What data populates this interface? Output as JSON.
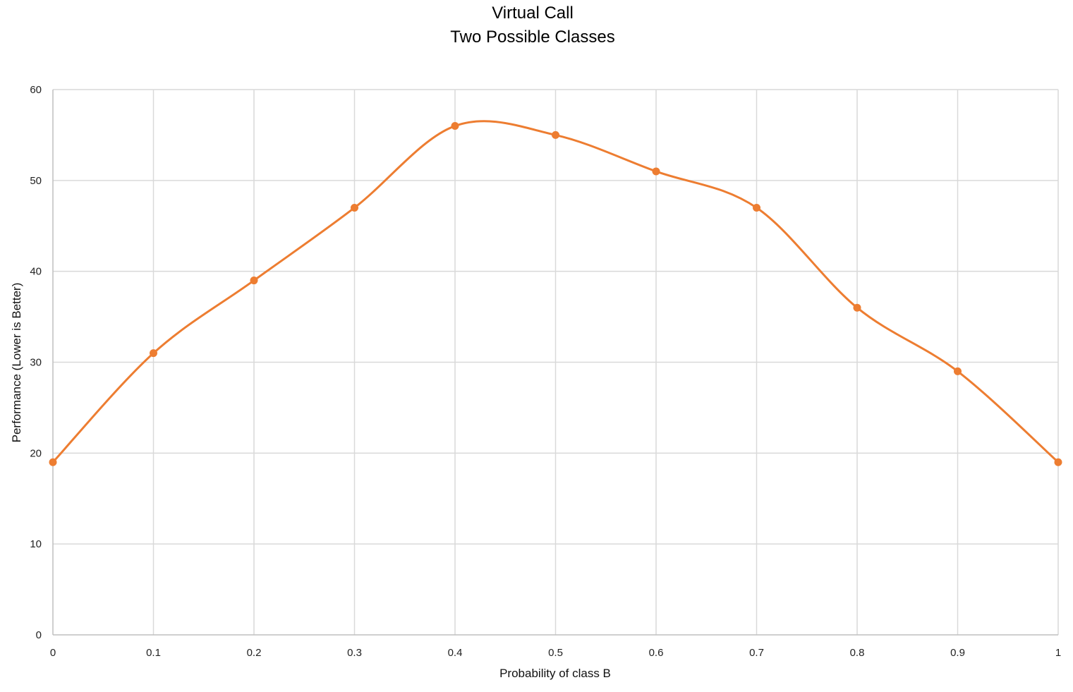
{
  "chart_data": {
    "type": "line",
    "title": [
      "Virtual Call",
      "Two Possible Classes"
    ],
    "xlabel": "Probability of class B",
    "ylabel": "Performance (Lower is Better)",
    "x": [
      0,
      0.1,
      0.2,
      0.3,
      0.4,
      0.5,
      0.6,
      0.7,
      0.8,
      0.9,
      1
    ],
    "x_tick_labels": [
      "0",
      "0.1",
      "0.2",
      "0.3",
      "0.4",
      "0.5",
      "0.6",
      "0.7",
      "0.8",
      "0.9",
      "1"
    ],
    "y_ticks": [
      0,
      10,
      20,
      30,
      40,
      50,
      60
    ],
    "xlim": [
      0,
      1
    ],
    "ylim": [
      0,
      60
    ],
    "grid": true,
    "smoothed": true,
    "series": [
      {
        "values": [
          19,
          31,
          39,
          47,
          56,
          55,
          51,
          47,
          36,
          29,
          19
        ],
        "color": "#ED7D31"
      }
    ]
  }
}
